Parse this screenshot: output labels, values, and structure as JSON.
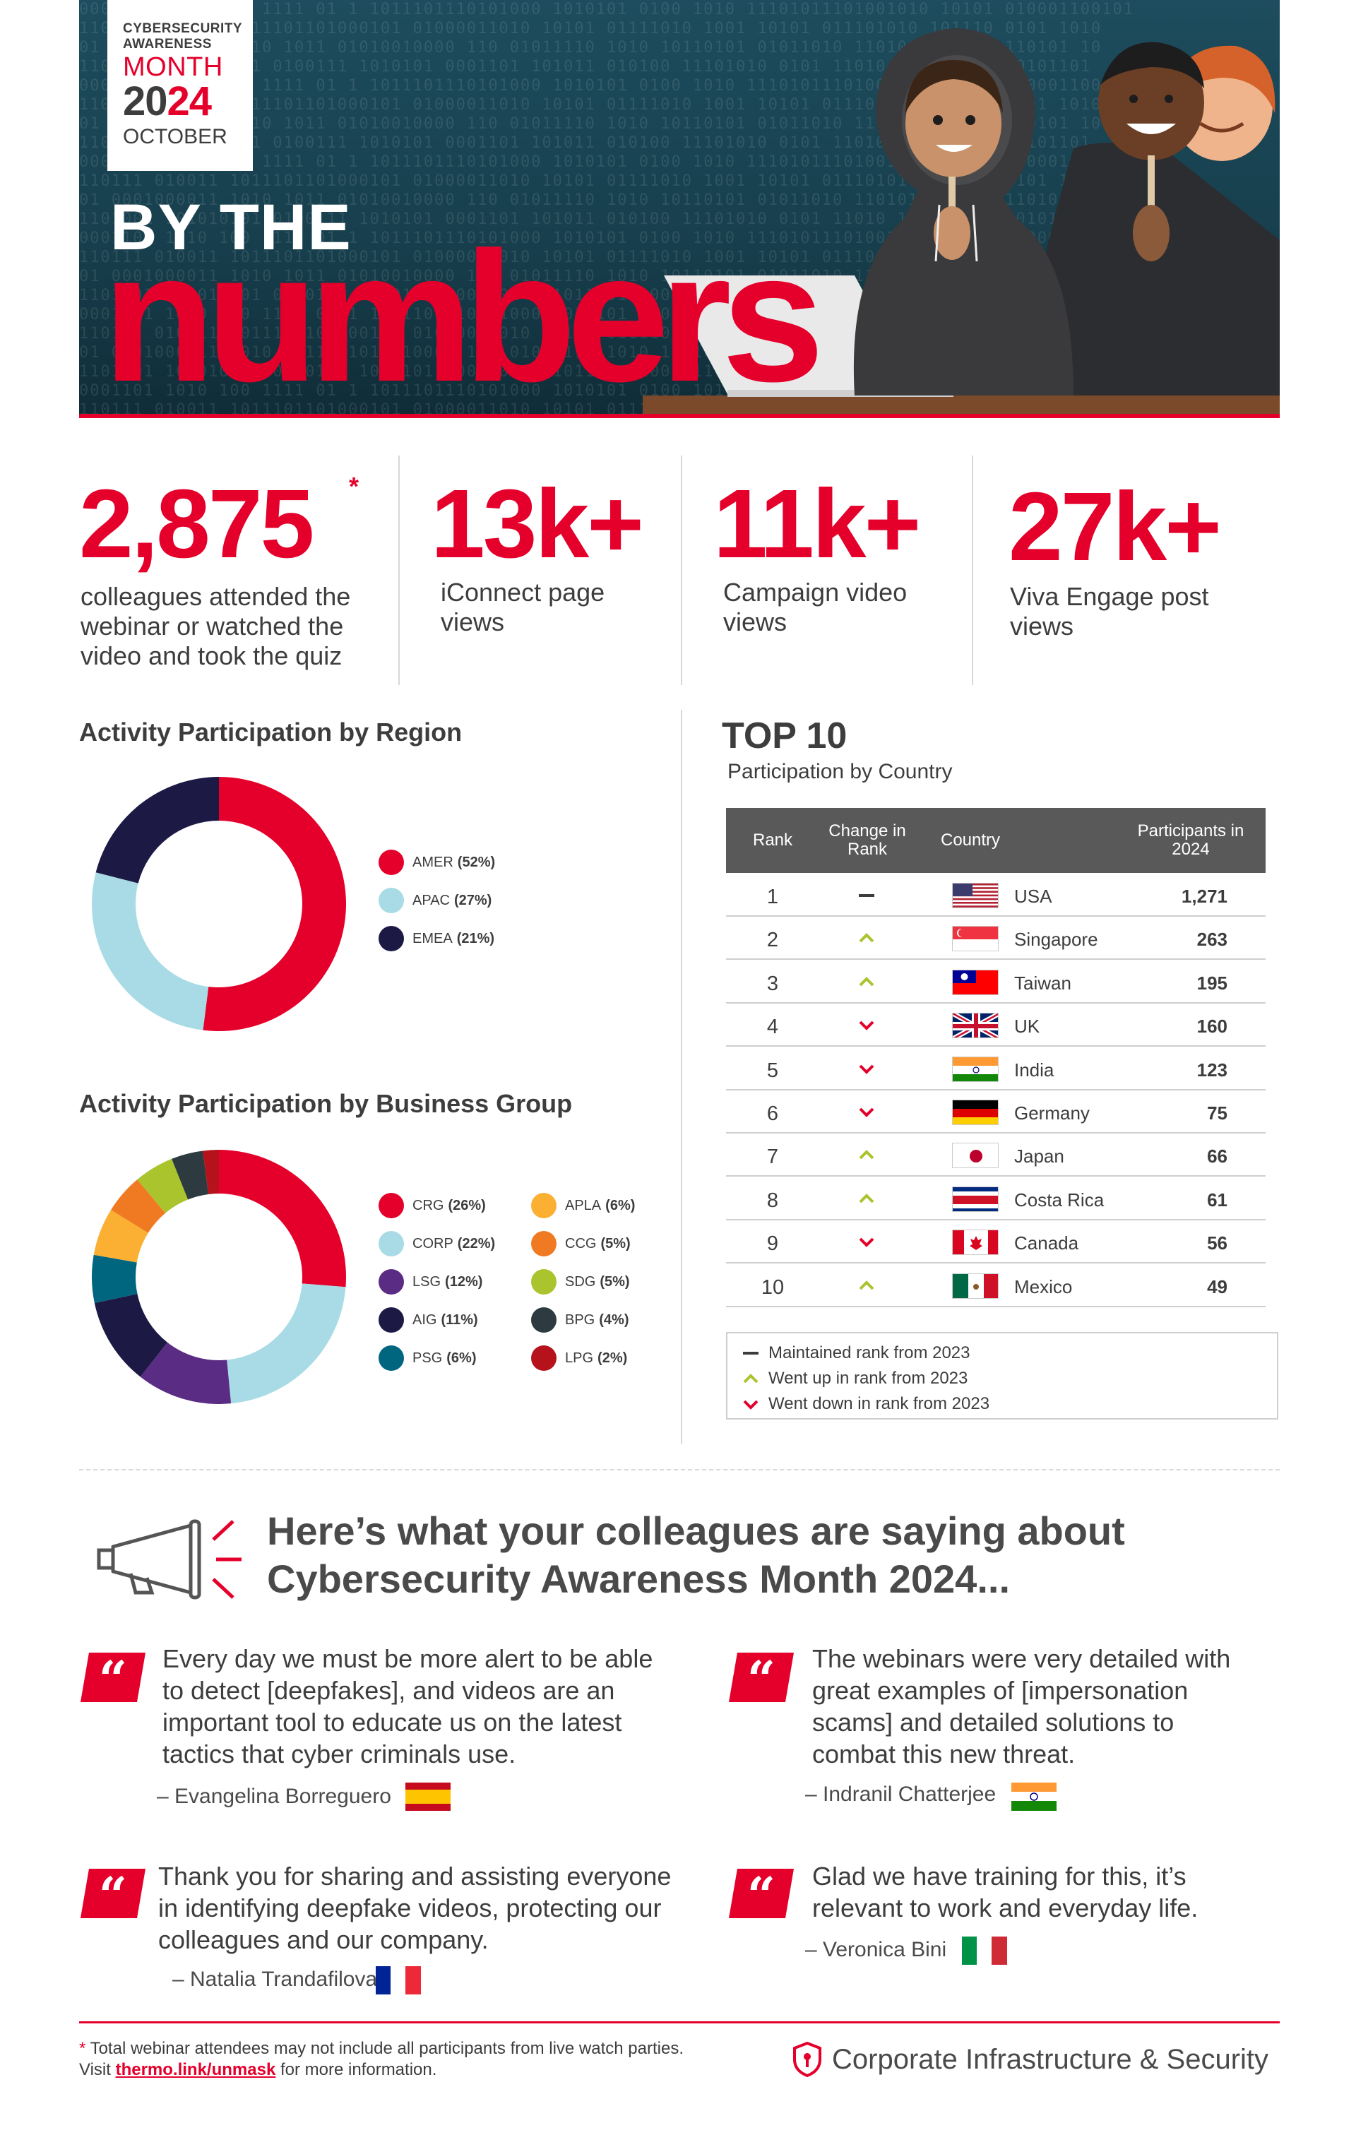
{
  "hero": {
    "campaign_line1": "CYBERSECURITY",
    "campaign_line2": "AWARENESS",
    "campaign_line3": "MONTH",
    "year_part1": "20",
    "year_part2": "24",
    "month": "OCTOBER",
    "title_small": "BY THE",
    "title_big": "numbers"
  },
  "stats": [
    {
      "number": "2,875",
      "asterisk": "*",
      "desc": "colleagues attended the webinar or watched the video and took the quiz"
    },
    {
      "number": "13k+",
      "desc": "iConnect page views"
    },
    {
      "number": "11k+",
      "desc": "Campaign video views"
    },
    {
      "number": "27k+",
      "desc": "Viva Engage post views"
    }
  ],
  "region": {
    "title": "Activity Participation by Region",
    "chart_data": {
      "type": "pie",
      "categories": [
        "AMER",
        "APAC",
        "EMEA"
      ],
      "values": [
        52,
        27,
        21
      ],
      "colors": [
        "#e4002b",
        "#a8dbe6",
        "#1c1a45"
      ],
      "labels": [
        "(52%)",
        "(27%)",
        "(21%)"
      ]
    }
  },
  "business": {
    "title": "Activity Participation by Business Group",
    "chart_data": {
      "type": "pie",
      "categories": [
        "CRG",
        "CORP",
        "LSG",
        "AIG",
        "PSG",
        "APLA",
        "CCG",
        "SDG",
        "BPG",
        "LPG"
      ],
      "values": [
        26,
        22,
        12,
        11,
        6,
        6,
        5,
        5,
        4,
        2
      ],
      "colors": [
        "#e4002b",
        "#a8dbe6",
        "#5b2c83",
        "#1c1a45",
        "#006680",
        "#fbb034",
        "#f07a22",
        "#a9c42d",
        "#2d3a40",
        "#b5121b"
      ],
      "labels": [
        "(26%)",
        "(22%)",
        "(12%)",
        "(11%)",
        "(6%)",
        "(6%)",
        "(5%)",
        "(5%)",
        "(4%)",
        "(2%)"
      ]
    }
  },
  "top10": {
    "title": "TOP 10",
    "subtitle": "Participation by Country",
    "headers": {
      "rank": "Rank",
      "change": "Change in Rank",
      "country": "Country",
      "participants": "Participants in 2024"
    },
    "chart_data": {
      "type": "table",
      "rows": [
        {
          "rank": "1",
          "change": "same",
          "country": "USA",
          "participants": "1,271",
          "flag": "usa"
        },
        {
          "rank": "2",
          "change": "up",
          "country": "Singapore",
          "participants": "263",
          "flag": "singapore"
        },
        {
          "rank": "3",
          "change": "up",
          "country": "Taiwan",
          "participants": "195",
          "flag": "taiwan"
        },
        {
          "rank": "4",
          "change": "down",
          "country": "UK",
          "participants": "160",
          "flag": "uk"
        },
        {
          "rank": "5",
          "change": "down",
          "country": "India",
          "participants": "123",
          "flag": "india"
        },
        {
          "rank": "6",
          "change": "down",
          "country": "Germany",
          "participants": "75",
          "flag": "germany"
        },
        {
          "rank": "7",
          "change": "up",
          "country": "Japan",
          "participants": "66",
          "flag": "japan"
        },
        {
          "rank": "8",
          "change": "up",
          "country": "Costa Rica",
          "participants": "61",
          "flag": "costa-rica"
        },
        {
          "rank": "9",
          "change": "down",
          "country": "Canada",
          "participants": "56",
          "flag": "canada"
        },
        {
          "rank": "10",
          "change": "up",
          "country": "Mexico",
          "participants": "49",
          "flag": "mexico"
        }
      ]
    },
    "legend": [
      {
        "symbol": "same",
        "text": "Maintained rank from 2023"
      },
      {
        "symbol": "up",
        "text": "Went up in rank from 2023"
      },
      {
        "symbol": "down",
        "text": "Went down in rank from 2023"
      }
    ]
  },
  "quotes": {
    "heading_line1": "Here’s what your colleagues are saying about",
    "heading_line2": "Cybersecurity Awareness Month 2024...",
    "items": [
      {
        "lines": [
          "Every day we must be more alert to be able",
          "to detect [deepfakes], and videos are an",
          "important tool to educate us on the latest",
          "tactics that cyber criminals use."
        ],
        "author": "– Evangelina Borreguero",
        "flag": "spain"
      },
      {
        "lines": [
          "The webinars were very detailed with",
          "great examples of [impersonation",
          "scams] and detailed solutions to",
          "combat this new threat."
        ],
        "author": "– Indranil Chatterjee",
        "flag": "india"
      },
      {
        "lines": [
          "Thank you for sharing and assisting everyone",
          "in identifying deepfake videos, protecting our",
          "colleagues and our company."
        ],
        "author": "– Natalia Trandafilova",
        "flag": "france"
      },
      {
        "lines": [
          "Glad we have training for this, it’s",
          "relevant to work and everyday life."
        ],
        "author": "– Veronica Bini",
        "flag": "italy"
      }
    ]
  },
  "footer": {
    "note_star": "*",
    "note_line1": " Total webinar attendees may not include all participants from live watch parties.",
    "note_visit": "Visit ",
    "note_link": "thermo.link/unmask",
    "note_after": " for more information.",
    "brand": "Corporate Infrastructure & Security"
  },
  "colors": {
    "accent": "#e4002b",
    "text": "#3d3d3d",
    "table_header": "#595959",
    "up": "#a9c42d",
    "down": "#e4002b",
    "same": "#3d3d3d"
  }
}
